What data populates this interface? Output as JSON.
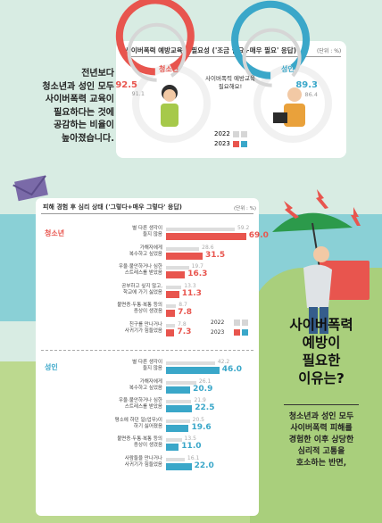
{
  "top": {
    "title": "사이버폭력 예방교육의 필요성 ('조금 필요+매우 필요' 응답)",
    "unit": "(단위 : %)",
    "side_text": [
      "전년보다",
      "청소년과 성인 모두",
      "사이버폭력 교육이",
      "필요하다는 것에",
      "공감하는 비율이",
      "높아졌습니다."
    ],
    "bubble": [
      "사이버폭력 예방교육",
      "필요해요!"
    ],
    "youth_label": "청소년",
    "adult_label": "성인",
    "legend_2022": "2022",
    "legend_2023": "2023",
    "colors": {
      "y2022": "#d6d6d6",
      "youth": "#e8554e",
      "adult": "#3aa7c9"
    }
  },
  "bottom": {
    "title": "피해 경험 후 심리 상태 ('그렇다+매우 그렇다' 응답)",
    "unit": "(단위 : %)",
    "youth_label": "청소년",
    "adult_label": "성인",
    "legend_2022": "2022",
    "legend_2023": "2023"
  },
  "headline": [
    "사이버폭력",
    "예방이",
    "필요한",
    "이유는?"
  ],
  "closing": [
    "청소년과 성인 모두",
    "사이버폭력 피해를",
    "경험한 이후 상당한",
    "심리적 고통을",
    "호소하는 반면,"
  ],
  "chart_data": [
    {
      "type": "donut",
      "title": "사이버폭력 예방교육의 필요성 ('조금 필요+매우 필요' 응답)",
      "unit": "%",
      "categories": [
        "청소년",
        "성인"
      ],
      "series": [
        {
          "name": "2022",
          "values": [
            91.1,
            86.4
          ]
        },
        {
          "name": "2023",
          "values": [
            92.5,
            89.3
          ]
        }
      ]
    },
    {
      "type": "bar",
      "title": "피해 경험 후 심리 상태 ('그렇다+매우 그렇다' 응답)",
      "unit": "%",
      "groups": [
        {
          "name": "청소년",
          "categories": [
            [
              "별 다른 생각이",
              "들지 않음"
            ],
            [
              "가해자에게",
              "복수하고 싶었음"
            ],
            [
              "우울·불안하거나 심한",
              "스트레스를 받았음"
            ],
            [
              "공부하고 싶지 않고,",
              "학교에 가기 싫었음"
            ],
            [
              "불면증·두통·복통 등의",
              "증상이 생겼음"
            ],
            [
              "친구를 만나거나",
              "사귀기가 힘들었음"
            ]
          ],
          "series": [
            {
              "name": "2022",
              "values": [
                59.2,
                28.6,
                19.7,
                13.3,
                8.7,
                7.8
              ]
            },
            {
              "name": "2023",
              "values": [
                69.0,
                31.5,
                16.3,
                11.3,
                7.8,
                7.3
              ]
            }
          ]
        },
        {
          "name": "성인",
          "categories": [
            [
              "별 다른 생각이",
              "들지 않음"
            ],
            [
              "가해자에게",
              "복수하고 싶었음"
            ],
            [
              "우울·불안하거나 심한",
              "스트레스를 받았음"
            ],
            [
              "평소에 하던 일(업무)이",
              "하기 싫어졌음"
            ],
            [
              "불면증·두통·복통 등의",
              "증상이 생겼음"
            ],
            [
              "사람들을 만나거나",
              "사귀기가 힘들었음"
            ]
          ],
          "series": [
            {
              "name": "2022",
              "values": [
                42.2,
                26.1,
                21.9,
                20.5,
                13.5,
                16.1
              ]
            },
            {
              "name": "2023",
              "values": [
                46.0,
                20.9,
                22.5,
                19.6,
                11.0,
                22.0
              ]
            }
          ]
        }
      ]
    }
  ]
}
